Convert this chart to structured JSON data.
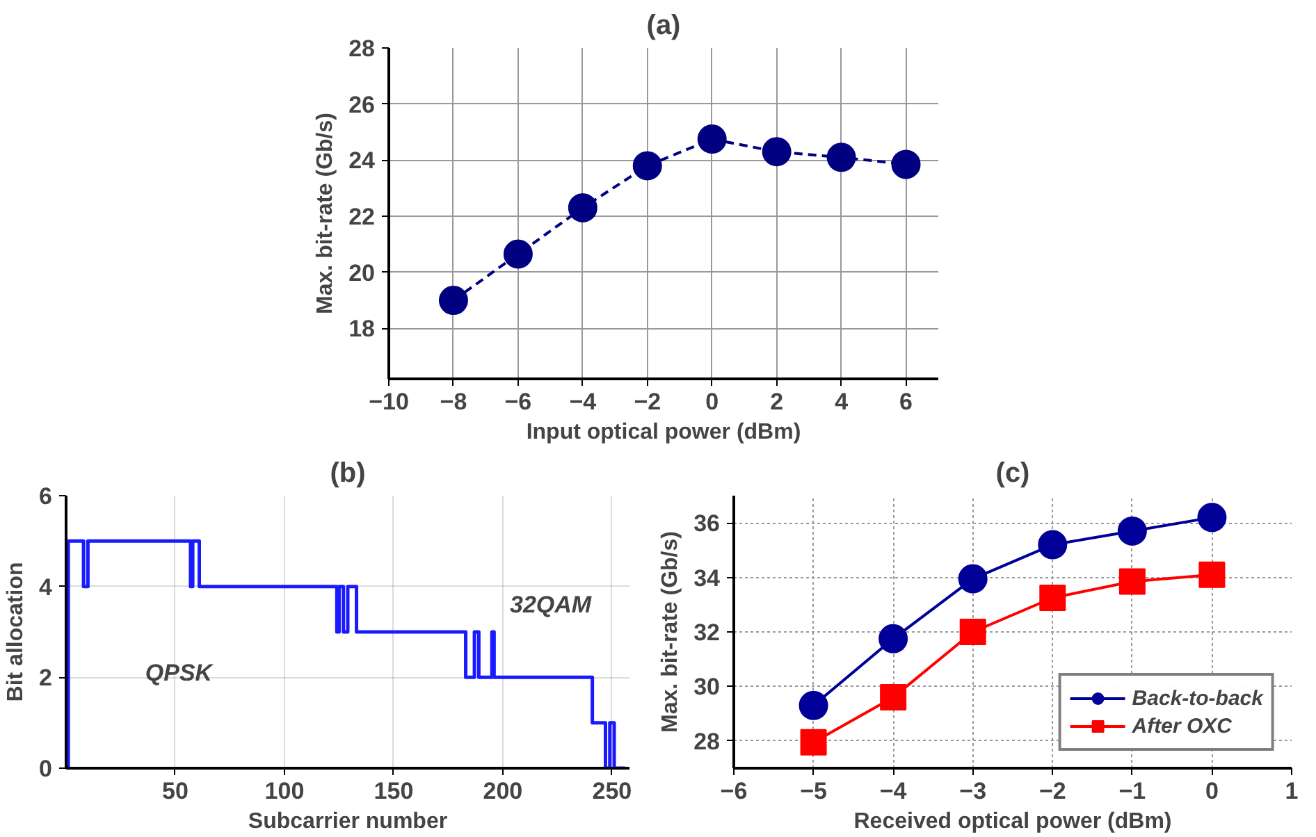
{
  "chart_data": [
    {
      "type": "line",
      "title": "(a)",
      "xlabel": "Input optical power (dBm)",
      "ylabel": "Max. bit-rate (Gb/s)",
      "x": [
        -8,
        -6,
        -4,
        -2,
        0,
        2,
        4,
        6
      ],
      "series": [
        {
          "color": "#000080",
          "values": [
            19.0,
            20.65,
            22.3,
            23.8,
            24.75,
            24.3,
            24.1,
            23.85
          ]
        }
      ],
      "xlim": [
        -10,
        7
      ],
      "ylim": [
        16.2,
        28
      ],
      "xticks": [
        -10,
        -8,
        -6,
        -4,
        -2,
        0,
        2,
        4,
        6
      ],
      "yticks": [
        18,
        20,
        22,
        24,
        26,
        28
      ],
      "grid": true,
      "marker": "circle",
      "line_style": "dashed",
      "legend": false
    },
    {
      "type": "step",
      "title": "(b)",
      "xlabel": "Subcarrier number",
      "ylabel": "Bit allocation",
      "x": [
        0,
        1,
        8,
        10,
        57,
        58,
        61,
        124,
        125,
        127,
        129,
        133,
        183,
        187,
        189,
        195,
        196,
        241,
        247,
        249,
        251,
        256
      ],
      "series": [
        {
          "color": "#1a1aff",
          "values": [
            0,
            5,
            4,
            5,
            4,
            5,
            4,
            3,
            4,
            3,
            4,
            3,
            2,
            3,
            2,
            3,
            2,
            1,
            0,
            1,
            0,
            0
          ]
        }
      ],
      "xlim": [
        0,
        258
      ],
      "ylim": [
        0,
        6
      ],
      "xticks": [
        50,
        100,
        150,
        200,
        250
      ],
      "yticks": [
        0,
        2,
        4,
        6
      ],
      "grid": true,
      "legend": false,
      "annotations": [
        "QPSK",
        "32QAM"
      ]
    },
    {
      "type": "line",
      "title": "(c)",
      "xlabel": "Received optical power (dBm)",
      "ylabel": "Max. bit-rate (Gb/s)",
      "x": [
        -5,
        -4,
        -3,
        -2,
        -1,
        0
      ],
      "series": [
        {
          "name": "Back-to-back",
          "color": "#000099",
          "marker": "circle",
          "values": [
            29.3,
            31.75,
            33.95,
            35.2,
            35.7,
            36.2
          ]
        },
        {
          "name": "After OXC",
          "color": "#ff0000",
          "marker": "square",
          "values": [
            27.95,
            29.6,
            32.0,
            33.25,
            33.85,
            34.1
          ]
        }
      ],
      "xlim": [
        -6,
        1
      ],
      "ylim": [
        27,
        37
      ],
      "xticks": [
        -6,
        -5,
        -4,
        -3,
        -2,
        -1,
        0,
        1
      ],
      "yticks": [
        28,
        30,
        32,
        34,
        36
      ],
      "grid": true,
      "legend": "bottom right",
      "line_style": "solid"
    }
  ]
}
